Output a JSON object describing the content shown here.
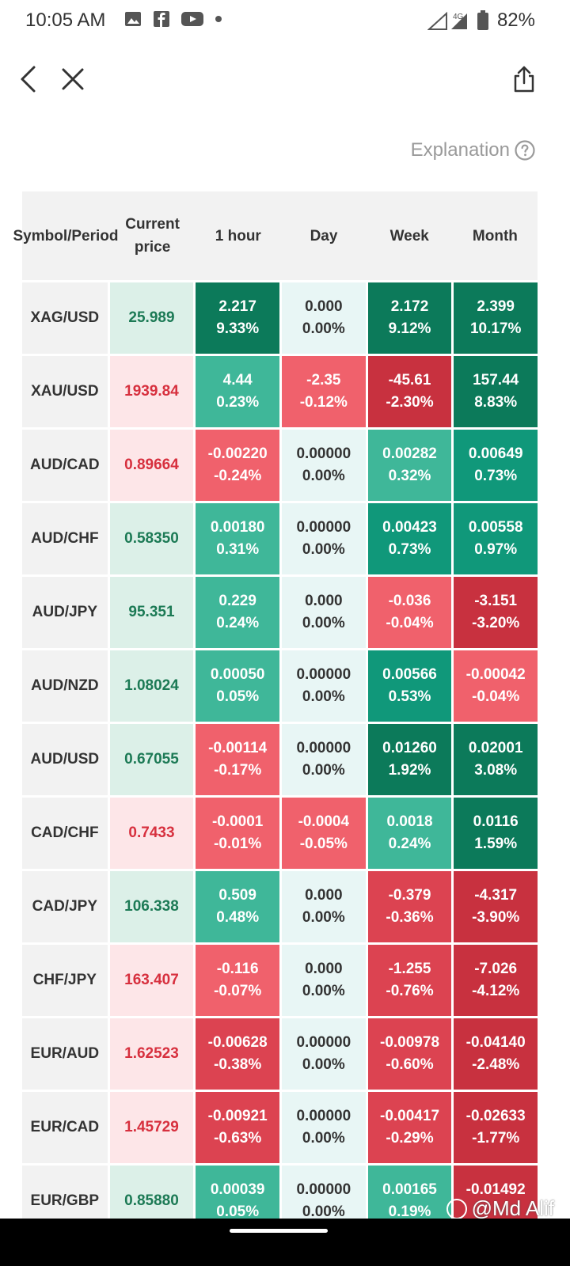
{
  "status_bar": {
    "time": "10:05 AM",
    "network": "4G",
    "battery": "82%",
    "left_icons": [
      "gallery-icon",
      "facebook-icon",
      "youtube-icon",
      "dot-icon"
    ]
  },
  "nav": {
    "back_icon": "chevron-left-icon",
    "close_icon": "close-icon",
    "share_icon": "share-icon"
  },
  "explanation": {
    "label": "Explanation",
    "icon": "help-icon"
  },
  "table": {
    "headers": [
      "Symbol/Period",
      "Current price",
      "1 hour",
      "Day",
      "Week",
      "Month"
    ],
    "rows": [
      {
        "symbol": "XAG/USD",
        "price": "25.989",
        "price_dir": "up",
        "cells": [
          [
            "2.217",
            "9.33%"
          ],
          [
            "0.000",
            "0.00%"
          ],
          [
            "2.172",
            "9.12%"
          ],
          [
            "2.399",
            "10.17%"
          ]
        ]
      },
      {
        "symbol": "XAU/USD",
        "price": "1939.84",
        "price_dir": "down",
        "cells": [
          [
            "4.44",
            "0.23%"
          ],
          [
            "-2.35",
            "-0.12%"
          ],
          [
            "-45.61",
            "-2.30%"
          ],
          [
            "157.44",
            "8.83%"
          ]
        ]
      },
      {
        "symbol": "AUD/CAD",
        "price": "0.89664",
        "price_dir": "down",
        "cells": [
          [
            "-0.00220",
            "-0.24%"
          ],
          [
            "0.00000",
            "0.00%"
          ],
          [
            "0.00282",
            "0.32%"
          ],
          [
            "0.00649",
            "0.73%"
          ]
        ]
      },
      {
        "symbol": "AUD/CHF",
        "price": "0.58350",
        "price_dir": "up",
        "cells": [
          [
            "0.00180",
            "0.31%"
          ],
          [
            "0.00000",
            "0.00%"
          ],
          [
            "0.00423",
            "0.73%"
          ],
          [
            "0.00558",
            "0.97%"
          ]
        ]
      },
      {
        "symbol": "AUD/JPY",
        "price": "95.351",
        "price_dir": "up",
        "cells": [
          [
            "0.229",
            "0.24%"
          ],
          [
            "0.000",
            "0.00%"
          ],
          [
            "-0.036",
            "-0.04%"
          ],
          [
            "-3.151",
            "-3.20%"
          ]
        ]
      },
      {
        "symbol": "AUD/NZD",
        "price": "1.08024",
        "price_dir": "up",
        "cells": [
          [
            "0.00050",
            "0.05%"
          ],
          [
            "0.00000",
            "0.00%"
          ],
          [
            "0.00566",
            "0.53%"
          ],
          [
            "-0.00042",
            "-0.04%"
          ]
        ]
      },
      {
        "symbol": "AUD/USD",
        "price": "0.67055",
        "price_dir": "up",
        "cells": [
          [
            "-0.00114",
            "-0.17%"
          ],
          [
            "0.00000",
            "0.00%"
          ],
          [
            "0.01260",
            "1.92%"
          ],
          [
            "0.02001",
            "3.08%"
          ]
        ]
      },
      {
        "symbol": "CAD/CHF",
        "price": "0.7433",
        "price_dir": "down",
        "cells": [
          [
            "-0.0001",
            "-0.01%"
          ],
          [
            "-0.0004",
            "-0.05%"
          ],
          [
            "0.0018",
            "0.24%"
          ],
          [
            "0.0116",
            "1.59%"
          ]
        ]
      },
      {
        "symbol": "CAD/JPY",
        "price": "106.338",
        "price_dir": "up",
        "cells": [
          [
            "0.509",
            "0.48%"
          ],
          [
            "0.000",
            "0.00%"
          ],
          [
            "-0.379",
            "-0.36%"
          ],
          [
            "-4.317",
            "-3.90%"
          ]
        ]
      },
      {
        "symbol": "CHF/JPY",
        "price": "163.407",
        "price_dir": "down",
        "cells": [
          [
            "-0.116",
            "-0.07%"
          ],
          [
            "0.000",
            "0.00%"
          ],
          [
            "-1.255",
            "-0.76%"
          ],
          [
            "-7.026",
            "-4.12%"
          ]
        ]
      },
      {
        "symbol": "EUR/AUD",
        "price": "1.62523",
        "price_dir": "down",
        "cells": [
          [
            "-0.00628",
            "-0.38%"
          ],
          [
            "0.00000",
            "0.00%"
          ],
          [
            "-0.00978",
            "-0.60%"
          ],
          [
            "-0.04140",
            "-2.48%"
          ]
        ]
      },
      {
        "symbol": "EUR/CAD",
        "price": "1.45729",
        "price_dir": "down",
        "cells": [
          [
            "-0.00921",
            "-0.63%"
          ],
          [
            "0.00000",
            "0.00%"
          ],
          [
            "-0.00417",
            "-0.29%"
          ],
          [
            "-0.02633",
            "-1.77%"
          ]
        ]
      },
      {
        "symbol": "EUR/GBP",
        "price": "0.85880",
        "price_dir": "up",
        "cells": [
          [
            "0.00039",
            "0.05%"
          ],
          [
            "0.00000",
            "0.00%"
          ],
          [
            "0.00165",
            "0.19%"
          ],
          [
            "-0.01492",
            ""
          ]
        ]
      }
    ]
  },
  "colors": {
    "strong_up": "#0c7a5a",
    "up": "#10987a",
    "mild_up": "#3fb799",
    "neutral": "#e8f6f5",
    "mild_down": "#f0616c",
    "down": "#dc4351",
    "strong_down": "#c8313f"
  },
  "watermark": {
    "text": "@Md Alif"
  }
}
